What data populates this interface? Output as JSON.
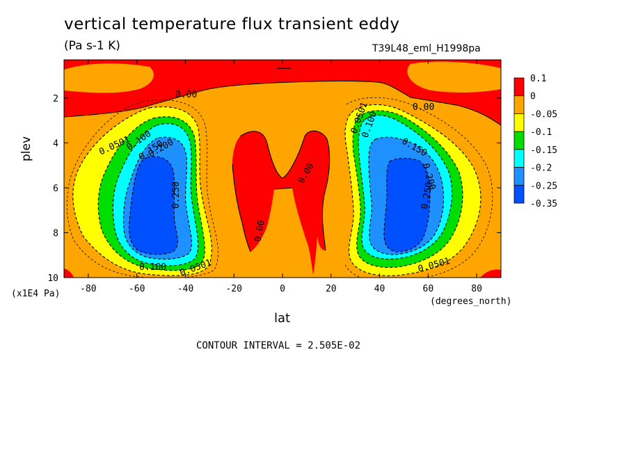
{
  "chart_data": {
    "type": "contour",
    "title": "vertical temperature flux transient eddy",
    "units": "(Pa s-1 K)",
    "dataset": "T39L48_eml_H1998pa",
    "xlabel": "lat",
    "x_units": "(degrees_north)",
    "ylabel": "plev",
    "y_units": "(x1E4 Pa)",
    "xlim": [
      -90,
      90
    ],
    "ylim": [
      10,
      0.3
    ],
    "x_ticks": [
      "-80",
      "-60",
      "-40",
      "-20",
      "0",
      "20",
      "40",
      "60",
      "80"
    ],
    "y_ticks": [
      "2",
      "4",
      "6",
      "8",
      "10"
    ],
    "contour_interval_text": "CONTOUR INTERVAL = 2.505E-02",
    "colorbar": {
      "labels": [
        "0.1",
        "0",
        "-0.05",
        "-0.1",
        "-0.15",
        "-0.2",
        "-0.25",
        "-0.35"
      ],
      "colors": [
        "#ff0000",
        "#ffa500",
        "#ffff00",
        "#00dd00",
        "#00ffff",
        "#1e90ff",
        "#0050ff"
      ]
    },
    "contour_labels": [
      "0.00",
      "0.00",
      "0.00",
      "0.00",
      "0.0501",
      "0.100",
      "0.150",
      "0.200",
      "0.250",
      "0.100",
      "0.0501",
      "0.0501",
      "0.100",
      "0.150",
      "0.200",
      "0.250",
      "0.0501"
    ],
    "features": {
      "minima": [
        {
          "lat": -52,
          "plev": 6.5,
          "approx_value": -0.35
        },
        {
          "lat": 50,
          "plev": 6.5,
          "approx_value": -0.35
        }
      ],
      "positive_regions": [
        "upper levels (plev < 2)",
        "equatorial mid-troposphere (-15 to 15 lat)"
      ]
    }
  }
}
